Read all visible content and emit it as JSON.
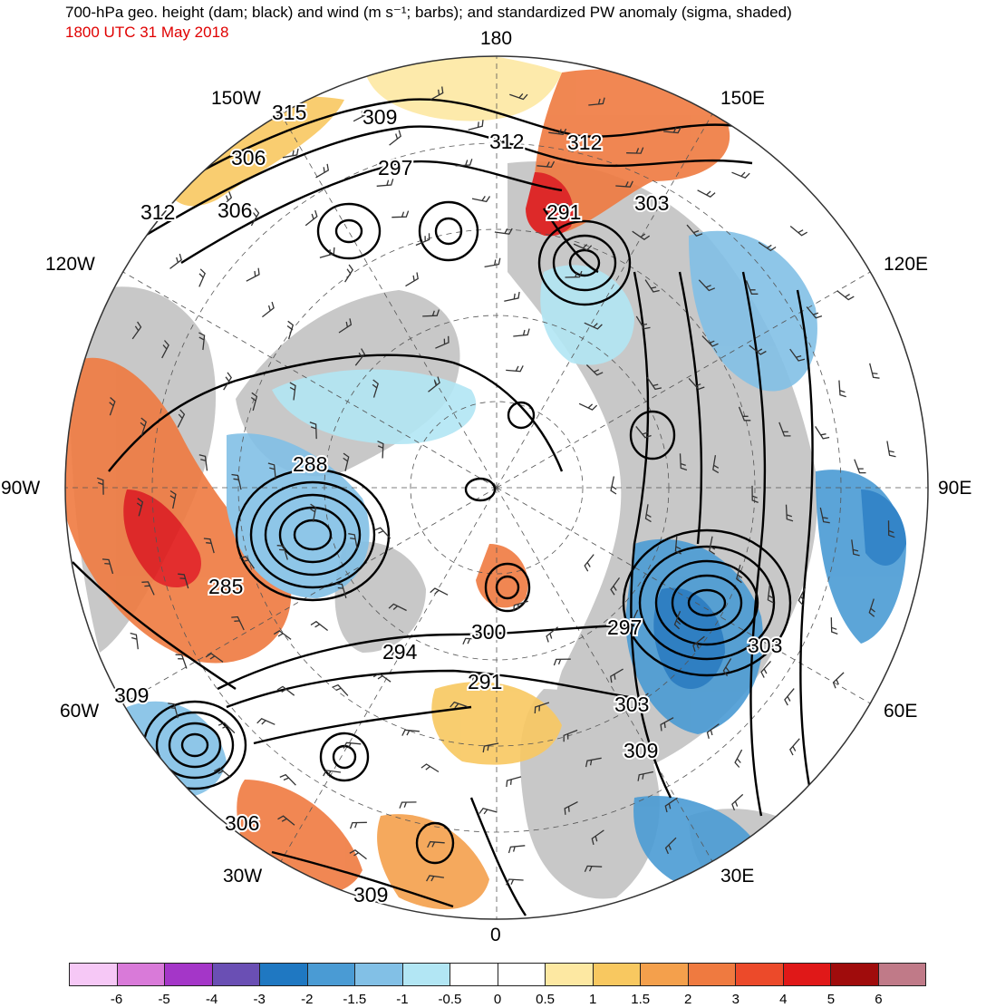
{
  "title": "700-hPa geo. height (dam; black) and wind (m s⁻¹; barbs); and standardized PW anomaly (sigma, shaded)",
  "valid_time": "1800 UTC 31 May 2018",
  "longitude_labels": {
    "top": "180",
    "bottom": "0",
    "left": "90W",
    "right": "90E",
    "top_left": "150W",
    "top_right": "150E",
    "upper_left": "120W",
    "upper_right": "120E",
    "lower_left": "60W",
    "lower_right": "60E",
    "bottom_left": "30W",
    "bottom_right": "30E"
  },
  "contour_labels": [
    "315",
    "309",
    "312",
    "306",
    "297",
    "312",
    "306",
    "303",
    "291",
    "288",
    "285",
    "300",
    "297",
    "294",
    "303",
    "291",
    "309",
    "309",
    "303",
    "309",
    "306",
    "312"
  ],
  "colorbar": {
    "colors": [
      "#f6c8f6",
      "#d97ad9",
      "#a436c8",
      "#6a4fb4",
      "#1f78c2",
      "#4a9bd4",
      "#82c0e6",
      "#b2e6f4",
      "#ffffff",
      "#ffffff",
      "#fde8a2",
      "#f8c860",
      "#f4a04c",
      "#ef7a40",
      "#ec4a2a",
      "#e01818",
      "#a00c0c",
      "#c07a88"
    ],
    "tick_labels": [
      "-6",
      "-5",
      "-4",
      "-3",
      "-2",
      "-1.5",
      "-1",
      "-0.5",
      "0",
      "0.5",
      "1",
      "1.5",
      "2",
      "3",
      "4",
      "5",
      "6"
    ]
  },
  "colors": {
    "land": "#c8c8c8",
    "ocean": "#ffffff",
    "contour": "#000000",
    "time_text": "#e00000"
  }
}
